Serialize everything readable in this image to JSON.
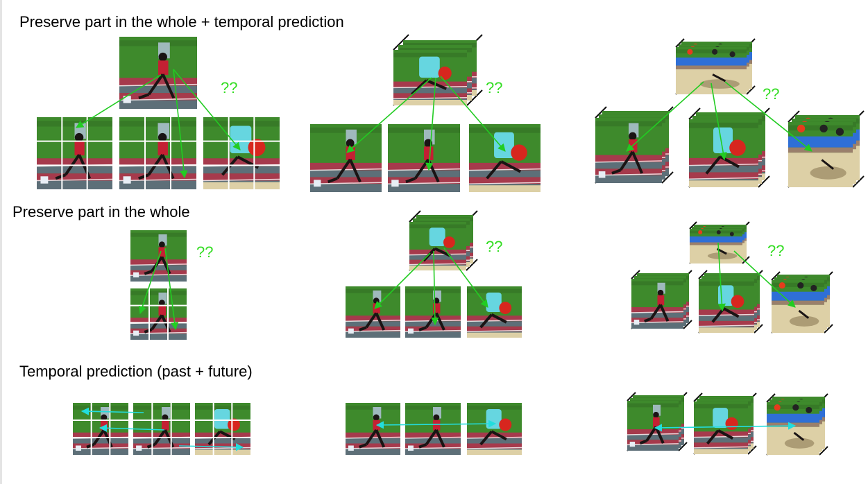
{
  "colors": {
    "grass": "#3e8a2c",
    "grass_dark": "#2f6a22",
    "track": "#a63a4c",
    "lane": "#5d6f78",
    "sand": "#ddd0a6",
    "stand": "#2f6fd6",
    "athlete": "#1a1414",
    "shirt": "#c42033",
    "person": "#66d6e0",
    "green_arrow": "#22cc22",
    "cyan_arrow": "#22dddd",
    "question": "#33dd22"
  },
  "rows": [
    {
      "title": "Preserve part in the whole  + temporal prediction"
    },
    {
      "title": "Preserve part in the whole"
    },
    {
      "title": "Temporal prediction (past + future)"
    }
  ],
  "question_marks": [
    "??",
    "??",
    "??",
    "??",
    "??",
    "??"
  ]
}
